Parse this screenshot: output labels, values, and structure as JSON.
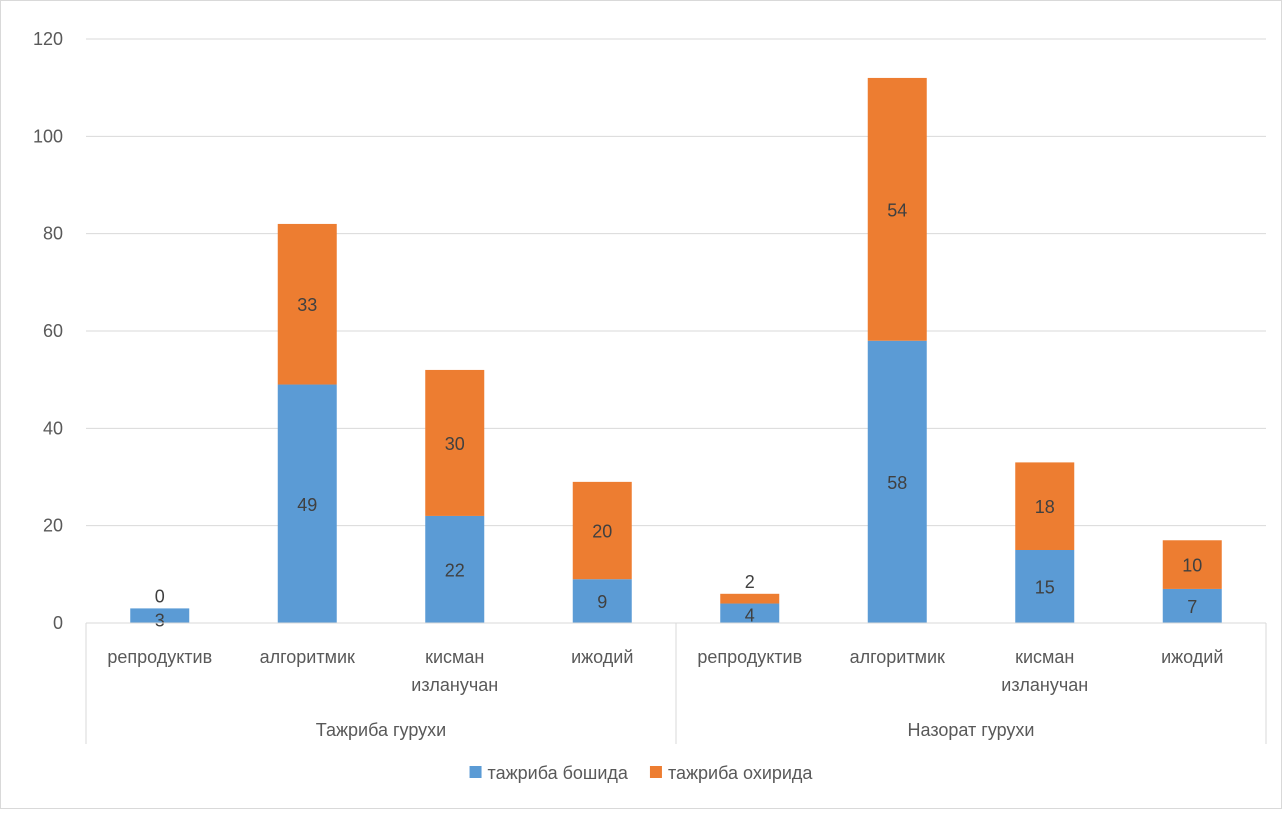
{
  "chart_data": {
    "type": "bar",
    "stacked": true,
    "groups": [
      {
        "label": "Тажриба гурухи",
        "categories": [
          "репродуктив",
          "алгоритмик",
          "кисман изланучан",
          "ижодий"
        ]
      },
      {
        "label": "Назорат гурухи",
        "categories": [
          "репродуктив",
          "алгоритмик",
          "кисман изланучан",
          "ижодий"
        ]
      }
    ],
    "series": [
      {
        "name": "тажриба бошида",
        "color": "#5B9BD5",
        "values": [
          3,
          49,
          22,
          9,
          4,
          58,
          15,
          7
        ]
      },
      {
        "name": "тажриба охирида",
        "color": "#ED7D31",
        "values": [
          0,
          33,
          30,
          20,
          2,
          54,
          18,
          10
        ]
      }
    ],
    "ylim": [
      0,
      120
    ],
    "yticks": [
      0,
      20,
      40,
      60,
      80,
      100,
      120
    ],
    "grid": true,
    "legend_position": "bottom",
    "title": "",
    "xlabel": "",
    "ylabel": ""
  }
}
